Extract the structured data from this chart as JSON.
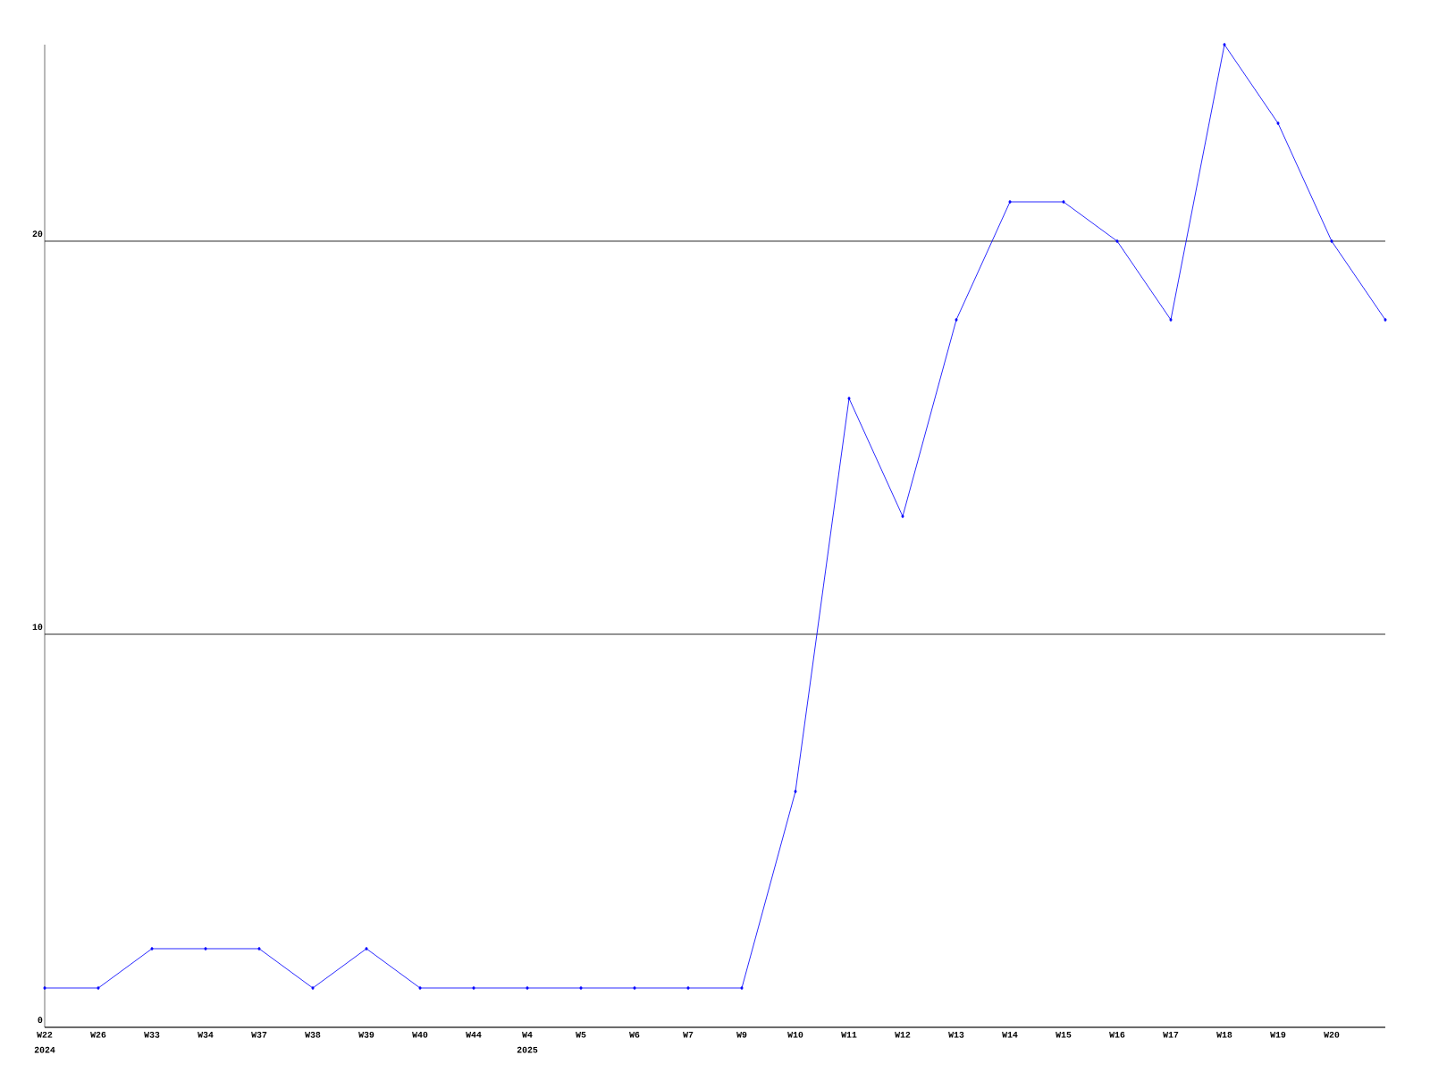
{
  "chart_data": {
    "type": "line",
    "categories": [
      "W22",
      "W26",
      "W33",
      "W34",
      "W37",
      "W38",
      "W39",
      "W40",
      "W44",
      "W4",
      "W5",
      "W6",
      "W7",
      "W9",
      "W10",
      "W11",
      "W12",
      "W13",
      "W14",
      "W15",
      "W16",
      "W17",
      "W18",
      "W19",
      "W20",
      null
    ],
    "series": [
      {
        "color": "#0000ff",
        "values": [
          1,
          1,
          2,
          2,
          2,
          1,
          2,
          1,
          1,
          1,
          1,
          1,
          1,
          1,
          6,
          16,
          13,
          18,
          21,
          21,
          20,
          18,
          25,
          23,
          20,
          18
        ]
      }
    ],
    "ylim": [
      0,
      25
    ],
    "yticks": [
      0,
      10,
      20
    ],
    "grid": "y",
    "marker": "diamond",
    "line_style": "solid",
    "annotations": [
      "2024",
      "2025"
    ]
  }
}
